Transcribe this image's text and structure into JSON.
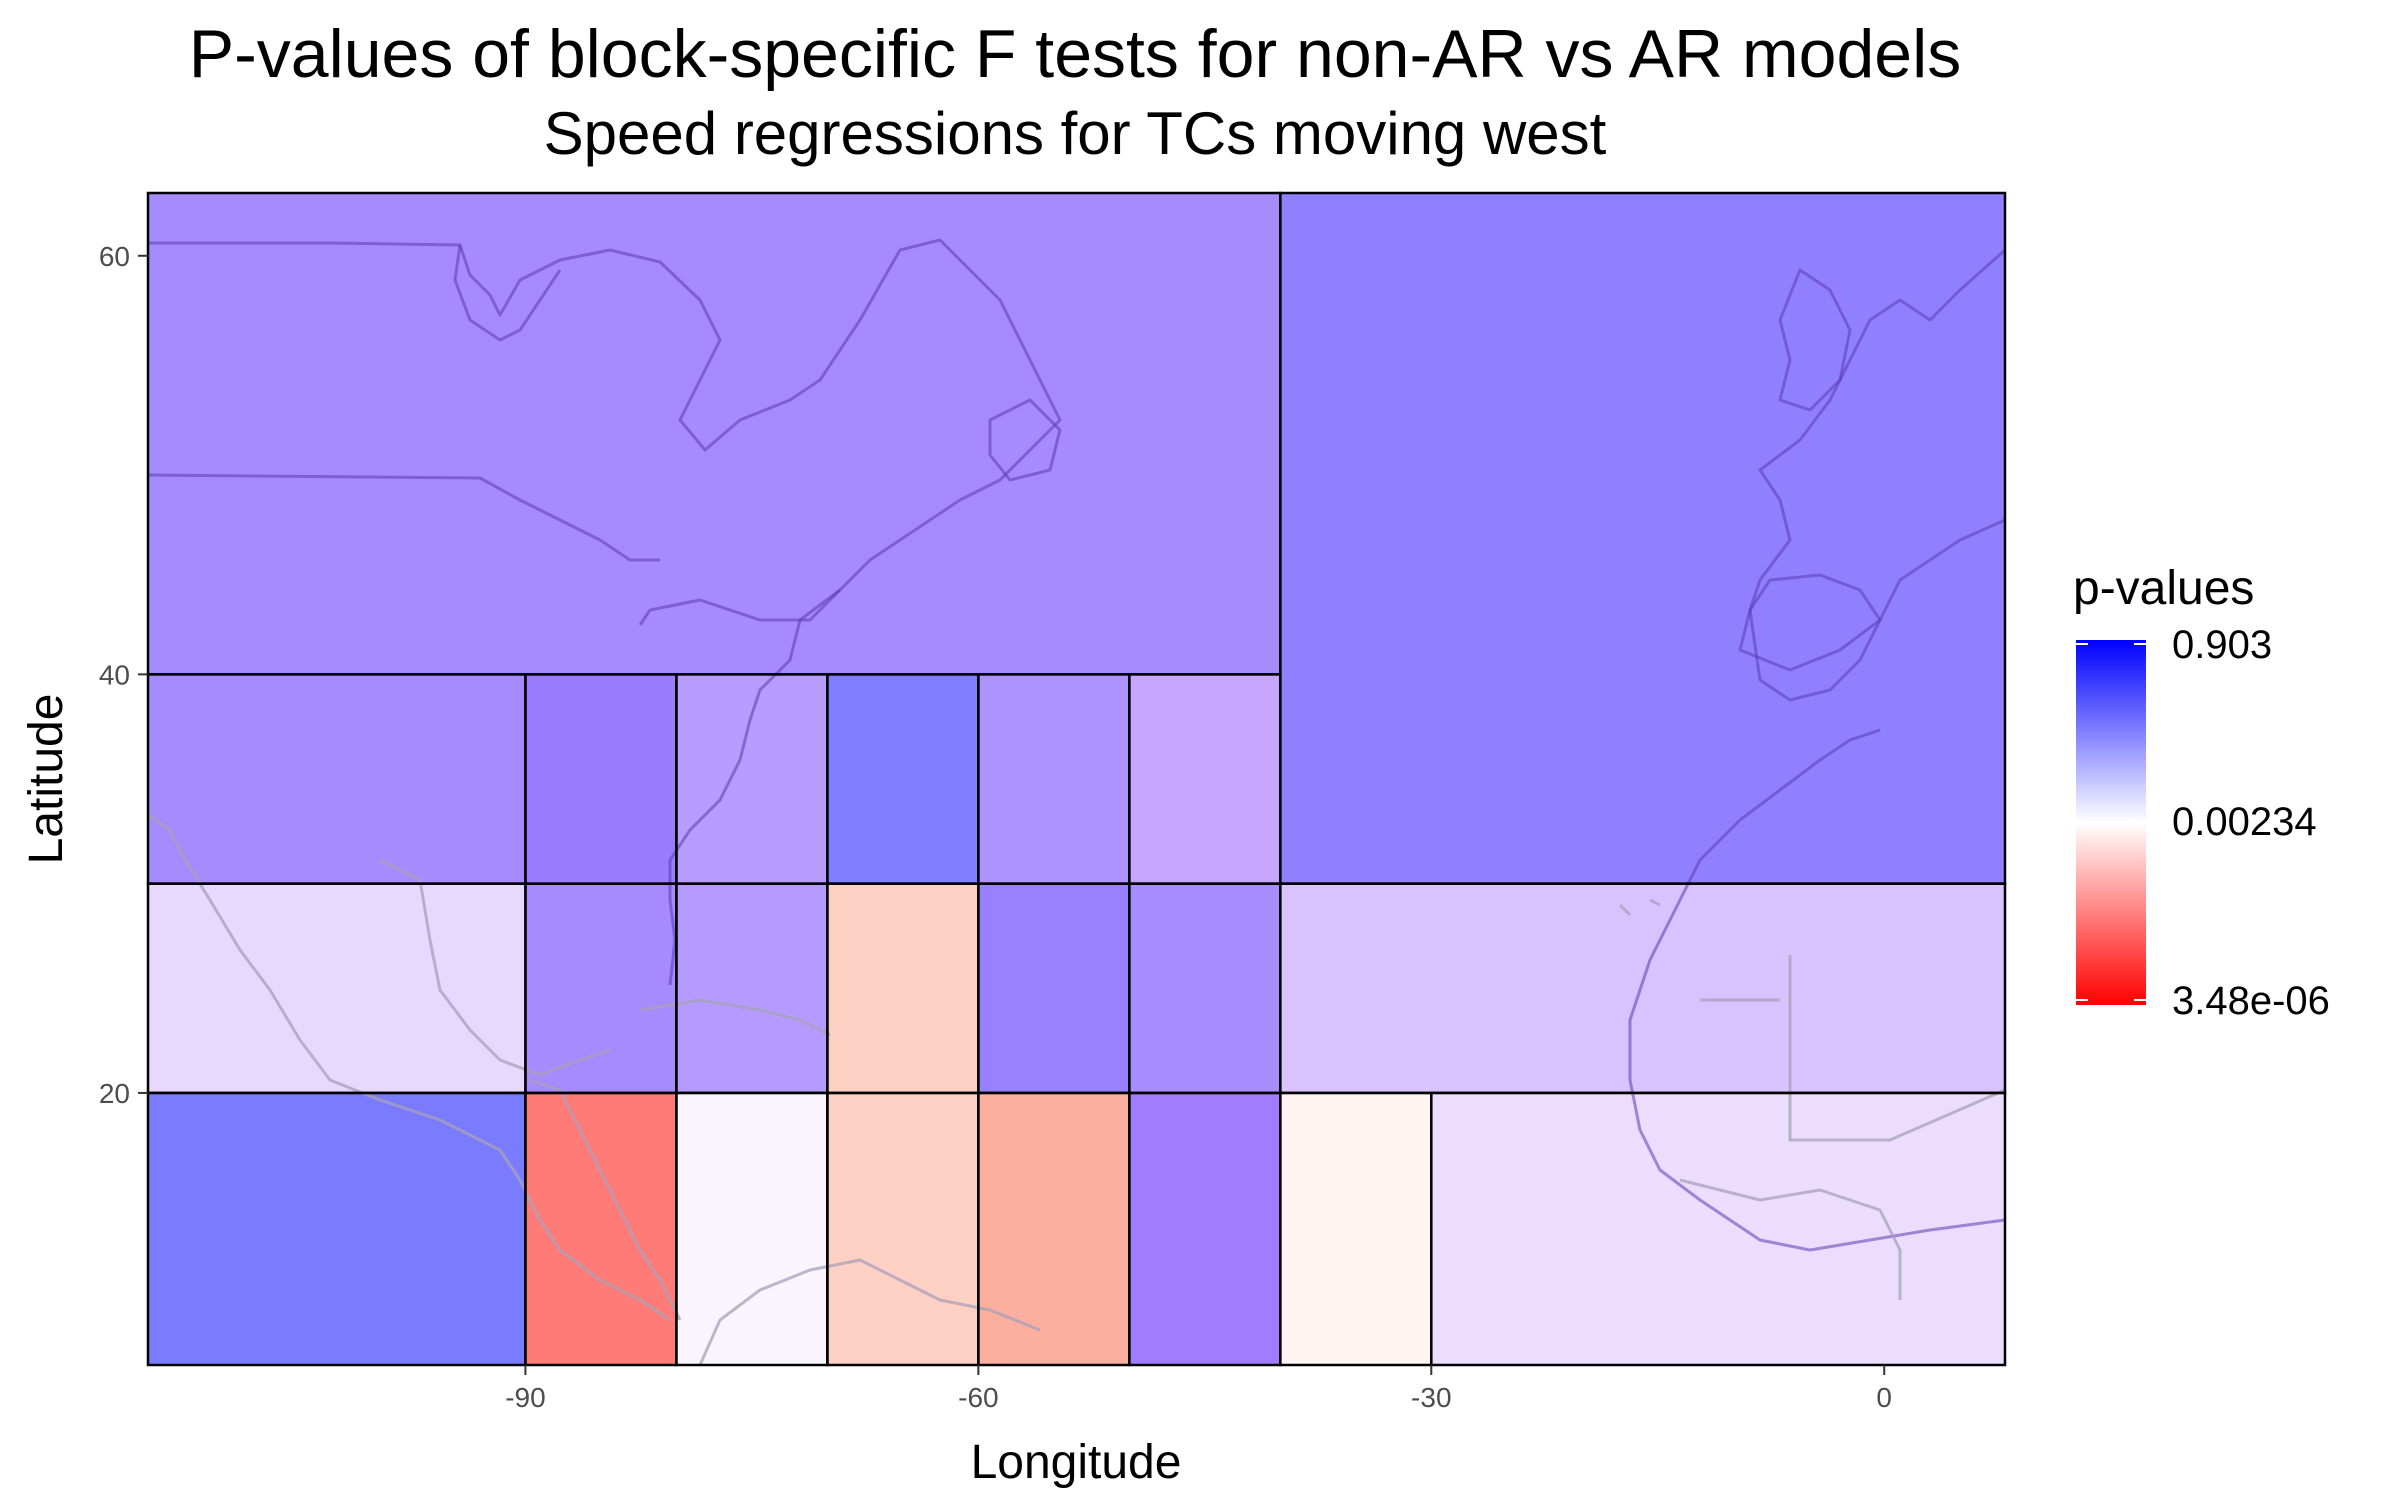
{
  "chart_data": {
    "type": "heatmap",
    "title": "P-values of block-specific F tests for non-AR vs AR models",
    "subtitle": "Speed regressions for TCs moving west",
    "xlabel": "Longitude",
    "ylabel": "Latitude",
    "xlim": [
      -115,
      8
    ],
    "ylim": [
      7,
      63
    ],
    "x_ticks": [
      -90,
      -60,
      -30,
      0
    ],
    "y_ticks": [
      20,
      40,
      60
    ],
    "legend": {
      "title": "p-values",
      "labels": [
        "0.903",
        "0.00234",
        "3.48e-06"
      ],
      "colors": [
        "#0000ff",
        "#ffffff",
        "#ff0000"
      ]
    },
    "cells": [
      {
        "lon_min": -115,
        "lon_max": -40,
        "lat_min": 40,
        "lat_max": 63,
        "p_value": 0.08,
        "color": "#a68bff"
      },
      {
        "lon_min": -40,
        "lon_max": 8,
        "lat_min": 30,
        "lat_max": 63,
        "p_value": 0.25,
        "color": "#9080ff"
      },
      {
        "lon_min": -115,
        "lon_max": -90,
        "lat_min": 30,
        "lat_max": 40,
        "p_value": 0.08,
        "color": "#a68bff"
      },
      {
        "lon_min": -90,
        "lon_max": -80,
        "lat_min": 30,
        "lat_max": 40,
        "p_value": 0.15,
        "color": "#9a7dff"
      },
      {
        "lon_min": -80,
        "lon_max": -70,
        "lat_min": 30,
        "lat_max": 40,
        "p_value": 0.04,
        "color": "#b99cff"
      },
      {
        "lon_min": -70,
        "lon_max": -60,
        "lat_min": 30,
        "lat_max": 40,
        "p_value": 0.55,
        "color": "#7f7fff"
      },
      {
        "lon_min": -60,
        "lon_max": -50,
        "lat_min": 30,
        "lat_max": 40,
        "p_value": 0.07,
        "color": "#ad93ff"
      },
      {
        "lon_min": -50,
        "lon_max": -40,
        "lat_min": 30,
        "lat_max": 40,
        "p_value": 0.02,
        "color": "#c6a6ff"
      },
      {
        "lon_min": -115,
        "lon_max": -90,
        "lat_min": 20,
        "lat_max": 30,
        "p_value": 0.005,
        "color": "#e6d8ff"
      },
      {
        "lon_min": -90,
        "lon_max": -80,
        "lat_min": 20,
        "lat_max": 30,
        "p_value": 0.1,
        "color": "#a68bff"
      },
      {
        "lon_min": -80,
        "lon_max": -70,
        "lat_min": 20,
        "lat_max": 30,
        "p_value": 0.06,
        "color": "#b59bff"
      },
      {
        "lon_min": -70,
        "lon_max": -60,
        "lat_min": 20,
        "lat_max": 30,
        "p_value": 0.0008,
        "color": "#fdd0c4"
      },
      {
        "lon_min": -60,
        "lon_max": -50,
        "lat_min": 20,
        "lat_max": 30,
        "p_value": 0.18,
        "color": "#9881ff"
      },
      {
        "lon_min": -50,
        "lon_max": -40,
        "lat_min": 20,
        "lat_max": 30,
        "p_value": 0.09,
        "color": "#a78eff"
      },
      {
        "lon_min": -40,
        "lon_max": 8,
        "lat_min": 20,
        "lat_max": 30,
        "p_value": 0.012,
        "color": "#d8c3ff"
      },
      {
        "lon_min": -115,
        "lon_max": -90,
        "lat_min": 7,
        "lat_max": 20,
        "p_value": 0.55,
        "color": "#7b7bff"
      },
      {
        "lon_min": -90,
        "lon_max": -80,
        "lat_min": 7,
        "lat_max": 20,
        "p_value": 2e-05,
        "color": "#ff7b78"
      },
      {
        "lon_min": -80,
        "lon_max": -70,
        "lat_min": 7,
        "lat_max": 20,
        "p_value": 0.0028,
        "color": "#f9f5ff"
      },
      {
        "lon_min": -70,
        "lon_max": -60,
        "lat_min": 7,
        "lat_max": 20,
        "p_value": 0.0008,
        "color": "#fdd0c4"
      },
      {
        "lon_min": -60,
        "lon_max": -50,
        "lat_min": 7,
        "lat_max": 20,
        "p_value": 0.0002,
        "color": "#fcaf9e"
      },
      {
        "lon_min": -50,
        "lon_max": -40,
        "lat_min": 7,
        "lat_max": 20,
        "p_value": 0.2,
        "color": "#a07cff"
      },
      {
        "lon_min": -40,
        "lon_max": -30,
        "lat_min": 7,
        "lat_max": 20,
        "p_value": 0.0019,
        "color": "#fff4f1"
      },
      {
        "lon_min": -30,
        "lon_max": 8,
        "lat_min": 7,
        "lat_max": 20,
        "p_value": 0.006,
        "color": "#ecddff"
      }
    ]
  }
}
